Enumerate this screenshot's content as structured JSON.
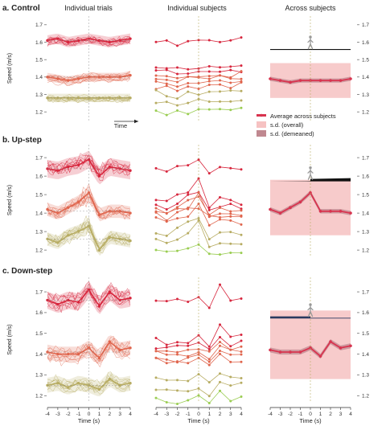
{
  "chart_data": {
    "type": "line",
    "columns": [
      "Individual trials",
      "Individual subjects",
      "Across subjects"
    ],
    "rows": [
      {
        "label": "a. Control",
        "ylim": [
          1.15,
          1.75
        ],
        "yticks": [
          "1.2",
          "1.3",
          "1.4",
          "1.5",
          "1.6",
          "1.7"
        ]
      },
      {
        "label": "b. Up-step",
        "ylim": [
          1.17,
          1.77
        ],
        "yticks": [
          "1.2",
          "1.3",
          "1.4",
          "1.5",
          "1.6",
          "1.7"
        ]
      },
      {
        "label": "c. Down-step",
        "ylim": [
          1.17,
          1.77
        ],
        "yticks": [
          "1.2",
          "1.3",
          "1.4",
          "1.5",
          "1.6",
          "1.7"
        ]
      }
    ],
    "x": [
      -4,
      -3,
      -2,
      -1,
      0,
      1,
      2,
      3,
      4
    ],
    "xticks": [
      "-4",
      "-3",
      "-2",
      "-1",
      "0",
      "1",
      "2",
      "3",
      "4"
    ],
    "xlabel": "Time (s)",
    "ylabel": "Speed (m/s)",
    "ylabel_alt": "Speed",
    "xlabel_control": "Time",
    "xlim": [
      -4,
      4
    ],
    "average_across_subjects": [
      {
        "row": "a. Control",
        "values": [
          1.39,
          1.38,
          1.37,
          1.38,
          1.38,
          1.38,
          1.38,
          1.38,
          1.39
        ]
      },
      {
        "row": "b. Up-step",
        "values": [
          1.42,
          1.4,
          1.43,
          1.46,
          1.51,
          1.41,
          1.41,
          1.41,
          1.4
        ]
      },
      {
        "row": "c. Down-step",
        "values": [
          1.42,
          1.41,
          1.41,
          1.41,
          1.43,
          1.39,
          1.46,
          1.43,
          1.44
        ]
      }
    ],
    "sd_overall": [
      {
        "row": "a. Control",
        "lower": 1.28,
        "upper": 1.48
      },
      {
        "row": "b. Up-step",
        "lower": 1.28,
        "upper": 1.58
      },
      {
        "row": "c. Down-step",
        "lower": 1.28,
        "upper": 1.61
      }
    ],
    "individual_trials_bands": [
      {
        "row": "a. Control",
        "group_means": [
          1.61,
          1.4,
          1.28
        ]
      },
      {
        "row": "b. Up-step",
        "group_means": [
          1.64,
          1.41,
          1.26
        ]
      },
      {
        "row": "c. Down-step",
        "group_means": [
          1.66,
          1.41,
          1.25
        ]
      }
    ],
    "legend": [
      {
        "label": "Average across subjects",
        "color": "#d8344f"
      },
      {
        "label": "s.d. (overall)",
        "color": "#f6c2c2"
      },
      {
        "label": "s.d. (demeaned)",
        "color": "#c08890"
      }
    ],
    "legend_position": "right",
    "grid": false,
    "colors": {
      "top": "#d7263d",
      "mid": "#e0654d",
      "low": "#b7ac62",
      "green": "#9acd52"
    }
  }
}
